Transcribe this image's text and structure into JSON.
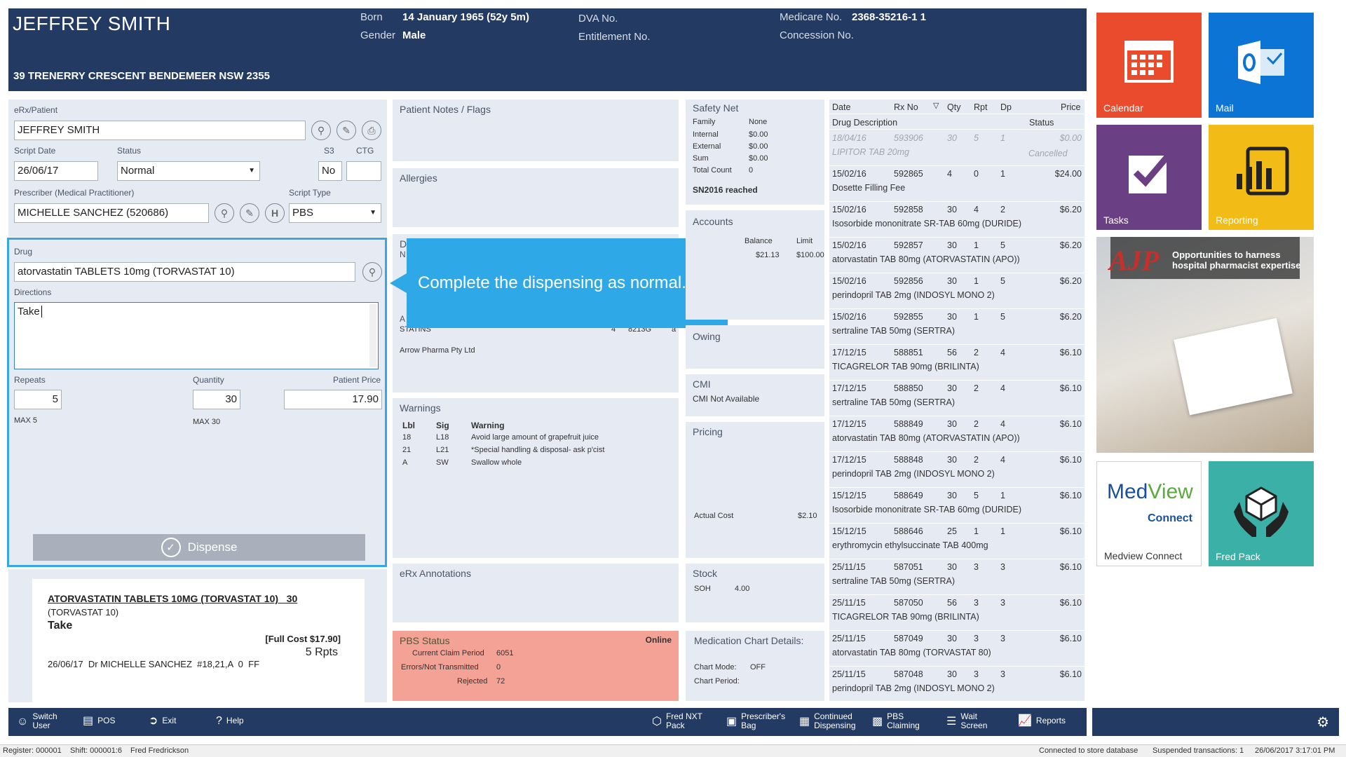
{
  "patient": {
    "name": "JEFFREY SMITH",
    "address": "39 TRENERRY CRESCENT BENDEMEER NSW 2355",
    "born_label": "Born",
    "born": "14 January 1965 (52y 5m)",
    "gender_label": "Gender",
    "gender": "Male",
    "dva_label": "DVA No.",
    "entitlement_label": "Entitlement No.",
    "medicare_label": "Medicare No.",
    "medicare": "2368-35216-1 1",
    "concession_label": "Concession No."
  },
  "script": {
    "erx_label": "eRx/Patient",
    "erx_value": "JEFFREY SMITH",
    "date_label": "Script Date",
    "date": "26/06/17",
    "status_label": "Status",
    "status": "Normal",
    "s3_label": "S3",
    "s3": "No",
    "ctg_label": "CTG",
    "ctg": "",
    "prescriber_label": "Prescriber (Medical Practitioner)",
    "prescriber": "MICHELLE SANCHEZ (520686)",
    "type_label": "Script Type",
    "type": "PBS",
    "drug_label": "Drug",
    "drug": "atorvastatin TABLETS 10mg (TORVASTAT 10)",
    "directions_label": "Directions",
    "directions": "Take",
    "repeats_label": "Repeats",
    "repeats": "5",
    "repeats_max": "MAX 5",
    "quantity_label": "Quantity",
    "quantity": "30",
    "quantity_max": "MAX 30",
    "price_label": "Patient Price",
    "price": "17.90",
    "dispense_label": "Dispense"
  },
  "label_preview": {
    "line1": "ATORVASTATIN TABLETS 10MG (TORVASTAT 10)   30",
    "line2": "(TORVASTAT 10)",
    "line3": "Take",
    "full_cost": "[Full Cost $17.90]",
    "repeats": "5 Rpts",
    "footer": "26/06/17  Dr MICHELLE SANCHEZ  #18,21,A  0  FF"
  },
  "notes": {
    "title": "Patient Notes / Flags",
    "allergies": "Allergies",
    "partial_d": "D",
    "partial_n": "N",
    "partial_a": "A",
    "statins": "STATINS",
    "statins_n": "4",
    "statins_code": "8213G",
    "statins_a": "a",
    "supplier": "Arrow Pharma Pty Ltd",
    "callout": "Complete the dispensing as normal.",
    "warnings_title": "Warnings",
    "warn_headers": [
      "Lbl",
      "Sig",
      "Warning"
    ],
    "warnings": [
      {
        "lbl": "18",
        "sig": "L18",
        "text": "Avoid large amount of grapefruit juice"
      },
      {
        "lbl": "21",
        "sig": "L21",
        "text": "*Special handling & disposal- ask p'cist"
      },
      {
        "lbl": "A",
        "sig": "SW",
        "text": "Swallow whole"
      }
    ],
    "erx_annotations": "eRx Annotations",
    "pbs_title": "PBS Status",
    "pbs_online": "Online",
    "pbs_rows": [
      {
        "k": "Current Claim Period",
        "v": "6051"
      },
      {
        "k": "Errors/Not Transmitted",
        "v": "0"
      },
      {
        "k": "Rejected",
        "v": "72"
      }
    ]
  },
  "info": {
    "safety_title": "Safety Net",
    "safety_rows": [
      {
        "k": "Family",
        "v": "None"
      },
      {
        "k": "Internal",
        "v": "$0.00"
      },
      {
        "k": "External",
        "v": "$0.00"
      },
      {
        "k": "Sum",
        "v": "$0.00"
      },
      {
        "k": "Total Count",
        "v": "0"
      }
    ],
    "safety_reached": "SN2016 reached",
    "accounts_title": "Accounts",
    "balance_label": "Balance",
    "limit_label": "Limit",
    "balance": "$21.13",
    "limit": "$100.00",
    "owing": "Owing",
    "cmi_title": "CMI",
    "cmi_value": "CMI Not Available",
    "pricing_title": "Pricing",
    "actual_cost_label": "Actual Cost",
    "actual_cost": "$2.10",
    "stock_title": "Stock",
    "soh_label": "SOH",
    "soh": "4.00",
    "medchart_title": "Medication Chart Details:",
    "chart_mode_label": "Chart Mode:",
    "chart_mode": "OFF",
    "chart_period_label": "Chart Period:"
  },
  "history": {
    "headers": [
      "Date",
      "Rx No",
      "Qty",
      "Rpt",
      "Dp",
      "Price"
    ],
    "headers2": [
      "Drug Description",
      "Status"
    ],
    "rows": [
      {
        "date": "18/04/16",
        "rx": "593906",
        "qty": "30",
        "rpt": "5",
        "dp": "1",
        "price": "$0.00",
        "desc": "LIPITOR TAB 20mg",
        "status": "Cancelled",
        "cancelled": true
      },
      {
        "date": "15/02/16",
        "rx": "592865",
        "qty": "4",
        "rpt": "0",
        "dp": "1",
        "price": "$24.00",
        "desc": "Dosette Filling Fee",
        "status": ""
      },
      {
        "date": "15/02/16",
        "rx": "592858",
        "qty": "30",
        "rpt": "4",
        "dp": "2",
        "price": "$6.20",
        "desc": "Isosorbide mononitrate SR-TAB 60mg (DURIDE)",
        "status": ""
      },
      {
        "date": "15/02/16",
        "rx": "592857",
        "qty": "30",
        "rpt": "1",
        "dp": "5",
        "price": "$6.20",
        "desc": "atorvastatin TAB 80mg (ATORVASTATIN (APO))",
        "status": ""
      },
      {
        "date": "15/02/16",
        "rx": "592856",
        "qty": "30",
        "rpt": "1",
        "dp": "5",
        "price": "$6.20",
        "desc": "perindopril TAB 2mg (INDOSYL MONO 2)",
        "status": ""
      },
      {
        "date": "15/02/16",
        "rx": "592855",
        "qty": "30",
        "rpt": "1",
        "dp": "5",
        "price": "$6.20",
        "desc": "sertraline TAB 50mg (SERTRA)",
        "status": ""
      },
      {
        "date": "17/12/15",
        "rx": "588851",
        "qty": "56",
        "rpt": "2",
        "dp": "4",
        "price": "$6.10",
        "desc": "TICAGRELOR TAB 90mg (BRILINTA)",
        "status": ""
      },
      {
        "date": "17/12/15",
        "rx": "588850",
        "qty": "30",
        "rpt": "2",
        "dp": "4",
        "price": "$6.10",
        "desc": "sertraline TAB 50mg (SERTRA)",
        "status": ""
      },
      {
        "date": "17/12/15",
        "rx": "588849",
        "qty": "30",
        "rpt": "2",
        "dp": "4",
        "price": "$6.10",
        "desc": "atorvastatin TAB 80mg (ATORVASTATIN (APO))",
        "status": ""
      },
      {
        "date": "17/12/15",
        "rx": "588848",
        "qty": "30",
        "rpt": "2",
        "dp": "4",
        "price": "$6.10",
        "desc": "perindopril TAB 2mg (INDOSYL MONO 2)",
        "status": ""
      },
      {
        "date": "15/12/15",
        "rx": "588649",
        "qty": "30",
        "rpt": "5",
        "dp": "1",
        "price": "$6.10",
        "desc": "Isosorbide mononitrate SR-TAB 60mg (DURIDE)",
        "status": ""
      },
      {
        "date": "15/12/15",
        "rx": "588646",
        "qty": "25",
        "rpt": "1",
        "dp": "1",
        "price": "$6.10",
        "desc": "erythromycin ethylsuccinate TAB 400mg",
        "status": ""
      },
      {
        "date": "25/11/15",
        "rx": "587051",
        "qty": "30",
        "rpt": "3",
        "dp": "3",
        "price": "$6.10",
        "desc": "sertraline TAB 50mg (SERTRA)",
        "status": ""
      },
      {
        "date": "25/11/15",
        "rx": "587050",
        "qty": "56",
        "rpt": "3",
        "dp": "3",
        "price": "$6.10",
        "desc": "TICAGRELOR TAB 90mg (BRILINTA)",
        "status": ""
      },
      {
        "date": "25/11/15",
        "rx": "587049",
        "qty": "30",
        "rpt": "3",
        "dp": "3",
        "price": "$6.10",
        "desc": "atorvastatin TAB 80mg (TORVASTAT 80)",
        "status": ""
      },
      {
        "date": "25/11/15",
        "rx": "587048",
        "qty": "30",
        "rpt": "3",
        "dp": "3",
        "price": "$6.10",
        "desc": "perindopril TAB 2mg (INDOSYL MONO 2)",
        "status": ""
      }
    ]
  },
  "tiles": {
    "calendar": "Calendar",
    "mail": "Mail",
    "tasks": "Tasks",
    "reporting": "Reporting",
    "ajp_title": "Opportunities to harness hospital pharmacist expertise",
    "ajp_logo": "AJP",
    "medview_logo1": "Med",
    "medview_logo2": "View",
    "medview_logo3": "Connect",
    "medview": "Medview Connect",
    "fredpack": "Fred Pack"
  },
  "bottom": {
    "switch_user": "Switch User",
    "pos": "POS",
    "exit": "Exit",
    "help": "Help",
    "fred_nxt": "Fred NXT Pack",
    "prescribers_bag": "Prescriber's Bag",
    "continued": "Continued Dispensing",
    "pbs_claiming": "PBS Claiming",
    "wait_screen": "Wait Screen",
    "reports": "Reports"
  },
  "status": {
    "register": "Register: 000001",
    "shift": "Shift: 000001:6",
    "user": "Fred Fredrickson",
    "db": "Connected to store database",
    "suspended": "Suspended transactions: 1",
    "datetime": "26/06/2017 3:17:01 PM"
  },
  "colors": {
    "header": "#233a62",
    "panel": "#e5eaf3",
    "callout": "#2ea8e6",
    "pbs": "#f4a196",
    "calendar": "#e94b2c",
    "mail": "#0b74d4",
    "tasks": "#6b3f83",
    "reporting": "#f3bb16",
    "fredpack": "#3ab0a6"
  }
}
